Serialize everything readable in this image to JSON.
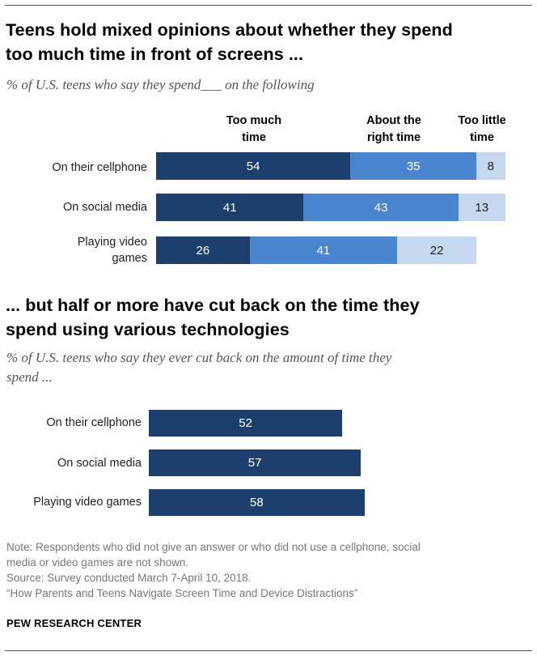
{
  "section1": {
    "title_line1": "Teens hold mixed opinions about whether they spend",
    "title_line2": "too much time in front of screens ...",
    "subtitle": "% of U.S. teens who say they spend___ on the following"
  },
  "section2": {
    "title_line1": "... but half or more have cut back on the time they",
    "title_line2": "spend using various technologies",
    "subtitle_line1": "% of U.S. teens who say they ever cut back on the amount of time they",
    "subtitle_line2": "spend ..."
  },
  "colors": {
    "dark": "#1d3f6e",
    "mid": "#4a86d0",
    "light": "#c5d8ef"
  },
  "chart_data": [
    {
      "type": "bar",
      "stacked": true,
      "orientation": "horizontal",
      "column_headers": [
        {
          "line1": "Too much",
          "line2": "time"
        },
        {
          "line1": "About the",
          "line2": "right time"
        },
        {
          "line1": "Too little",
          "line2": "time"
        }
      ],
      "categories": [
        {
          "line1": "On their cellphone",
          "line2": ""
        },
        {
          "line1": "On social media",
          "line2": ""
        },
        {
          "line1": "Playing video",
          "line2": "games"
        }
      ],
      "series": [
        {
          "name": "Too much time",
          "values": [
            54,
            41,
            26
          ]
        },
        {
          "name": "About the right time",
          "values": [
            35,
            43,
            41
          ]
        },
        {
          "name": "Too little time",
          "values": [
            8,
            13,
            22
          ]
        }
      ]
    },
    {
      "type": "bar",
      "orientation": "horizontal",
      "categories": [
        "On their cellphone",
        "On social media",
        "Playing video games"
      ],
      "values": [
        52,
        57,
        58
      ]
    }
  ],
  "footer": {
    "note_line1": "Note: Respondents who did not give an answer or who did not use a cellphone, social",
    "note_line2": "media or video games are not shown.",
    "source": "Source: Survey conducted March 7-April 10, 2018.",
    "report": "“How Parents and Teens Navigate Screen Time and Device Distractions”",
    "brand": "PEW RESEARCH CENTER"
  }
}
